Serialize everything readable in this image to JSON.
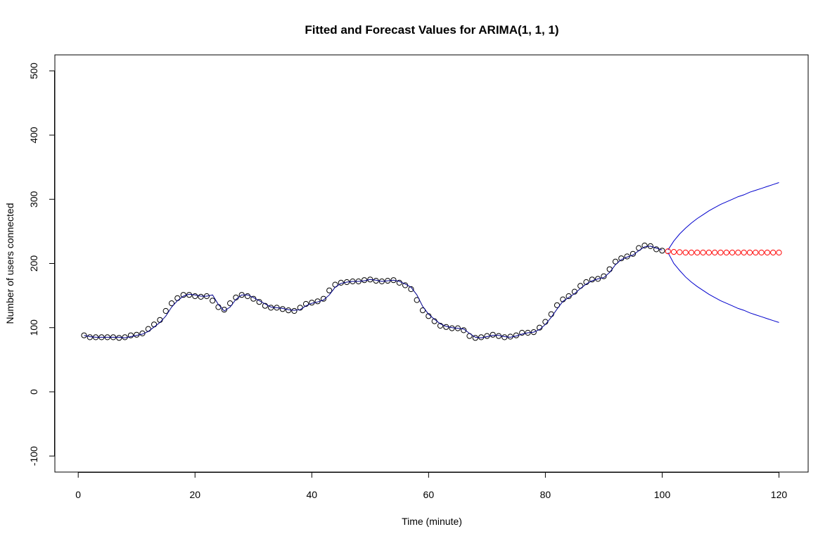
{
  "chart_data": {
    "type": "line",
    "title": "Fitted and Forecast Values for ARIMA(1, 1, 1)",
    "xlabel": "Time (minute)",
    "ylabel": "Number of users connected",
    "xlim": [
      -4,
      125
    ],
    "ylim": [
      -125,
      525
    ],
    "xticks": [
      0,
      20,
      40,
      60,
      80,
      100,
      120
    ],
    "yticks": [
      -100,
      0,
      100,
      200,
      300,
      400,
      500
    ],
    "grid": false,
    "legend": "none",
    "colors": {
      "observed": "#000000",
      "fitted": "#00008b",
      "forecast": "#ff0000",
      "bounds": "#0000cd"
    },
    "series": [
      {
        "role": "observed",
        "style": "points",
        "x": [
          1,
          2,
          3,
          4,
          5,
          6,
          7,
          8,
          9,
          10,
          11,
          12,
          13,
          14,
          15,
          16,
          17,
          18,
          19,
          20,
          21,
          22,
          23,
          24,
          25,
          26,
          27,
          28,
          29,
          30,
          31,
          32,
          33,
          34,
          35,
          36,
          37,
          38,
          39,
          40,
          41,
          42,
          43,
          44,
          45,
          46,
          47,
          48,
          49,
          50,
          51,
          52,
          53,
          54,
          55,
          56,
          57,
          58,
          59,
          60,
          61,
          62,
          63,
          64,
          65,
          66,
          67,
          68,
          69,
          70,
          71,
          72,
          73,
          74,
          75,
          76,
          77,
          78,
          79,
          80,
          81,
          82,
          83,
          84,
          85,
          86,
          87,
          88,
          89,
          90,
          91,
          92,
          93,
          94,
          95,
          96,
          97,
          98,
          99,
          100
        ],
        "values": [
          88,
          85,
          85,
          85,
          85,
          85,
          84,
          85,
          88,
          89,
          91,
          98,
          105,
          112,
          126,
          138,
          146,
          151,
          151,
          149,
          148,
          149,
          142,
          132,
          128,
          138,
          147,
          151,
          149,
          145,
          140,
          134,
          131,
          131,
          129,
          127,
          126,
          131,
          137,
          139,
          141,
          145,
          158,
          167,
          170,
          171,
          172,
          172,
          174,
          175,
          173,
          172,
          173,
          174,
          170,
          166,
          160,
          143,
          127,
          118,
          110,
          103,
          101,
          99,
          99,
          96,
          87,
          84,
          85,
          87,
          89,
          87,
          85,
          86,
          88,
          92,
          92,
          93,
          100,
          109,
          121,
          135,
          144,
          149,
          156,
          165,
          171,
          175,
          176,
          180,
          191,
          203,
          208,
          211,
          215,
          224,
          228,
          227,
          222,
          220
        ]
      },
      {
        "role": "fitted",
        "style": "line",
        "x": [
          1,
          2,
          3,
          4,
          5,
          6,
          7,
          8,
          9,
          10,
          11,
          12,
          13,
          14,
          15,
          16,
          17,
          18,
          19,
          20,
          21,
          22,
          23,
          24,
          25,
          26,
          27,
          28,
          29,
          30,
          31,
          32,
          33,
          34,
          35,
          36,
          37,
          38,
          39,
          40,
          41,
          42,
          43,
          44,
          45,
          46,
          47,
          48,
          49,
          50,
          51,
          52,
          53,
          54,
          55,
          56,
          57,
          58,
          59,
          60,
          61,
          62,
          63,
          64,
          65,
          66,
          67,
          68,
          69,
          70,
          71,
          72,
          73,
          74,
          75,
          76,
          77,
          78,
          79,
          80,
          81,
          82,
          83,
          84,
          85,
          86,
          87,
          88,
          89,
          90,
          91,
          92,
          93,
          94,
          95,
          96,
          97,
          98,
          99,
          100
        ],
        "values": [
          88,
          86,
          85,
          85,
          85,
          85,
          85,
          84,
          86,
          88,
          90,
          94,
          101,
          108,
          118,
          132,
          142,
          149,
          152,
          151,
          149,
          149,
          151,
          136,
          126,
          132,
          144,
          151,
          151,
          147,
          142,
          137,
          132,
          131,
          130,
          128,
          127,
          128,
          134,
          138,
          140,
          143,
          151,
          163,
          169,
          171,
          172,
          172,
          173,
          175,
          174,
          172,
          173,
          174,
          172,
          168,
          163,
          151,
          133,
          121,
          113,
          106,
          102,
          100,
          99,
          98,
          91,
          85,
          84,
          86,
          88,
          88,
          86,
          85,
          87,
          90,
          92,
          93,
          97,
          105,
          116,
          129,
          141,
          147,
          153,
          161,
          168,
          173,
          176,
          178,
          186,
          198,
          206,
          210,
          213,
          220,
          226,
          227,
          224,
          221
        ]
      },
      {
        "role": "forecast",
        "style": "points",
        "x": [
          101,
          102,
          103,
          104,
          105,
          106,
          107,
          108,
          109,
          110,
          111,
          112,
          113,
          114,
          115,
          116,
          117,
          118,
          119,
          120
        ],
        "values": [
          219,
          218,
          217.5,
          217,
          217,
          217,
          217,
          217,
          217,
          217,
          217,
          217,
          217,
          217,
          217,
          217,
          217,
          217,
          217,
          217
        ]
      },
      {
        "role": "upper",
        "style": "line",
        "x": [
          101,
          102,
          103,
          104,
          105,
          106,
          107,
          108,
          109,
          110,
          111,
          112,
          113,
          114,
          115,
          116,
          117,
          118,
          119,
          120
        ],
        "values": [
          221,
          235,
          246,
          255,
          263,
          270,
          276,
          282,
          287,
          292,
          296,
          300,
          304,
          307,
          311,
          314,
          317,
          320,
          323,
          326
        ]
      },
      {
        "role": "lower",
        "style": "line",
        "x": [
          101,
          102,
          103,
          104,
          105,
          106,
          107,
          108,
          109,
          110,
          111,
          112,
          113,
          114,
          115,
          116,
          117,
          118,
          119,
          120
        ],
        "values": [
          217,
          200,
          189,
          179,
          171,
          164,
          158,
          152,
          147,
          142,
          138,
          134,
          130,
          127,
          123,
          120,
          117,
          114,
          111,
          108
        ]
      }
    ]
  }
}
